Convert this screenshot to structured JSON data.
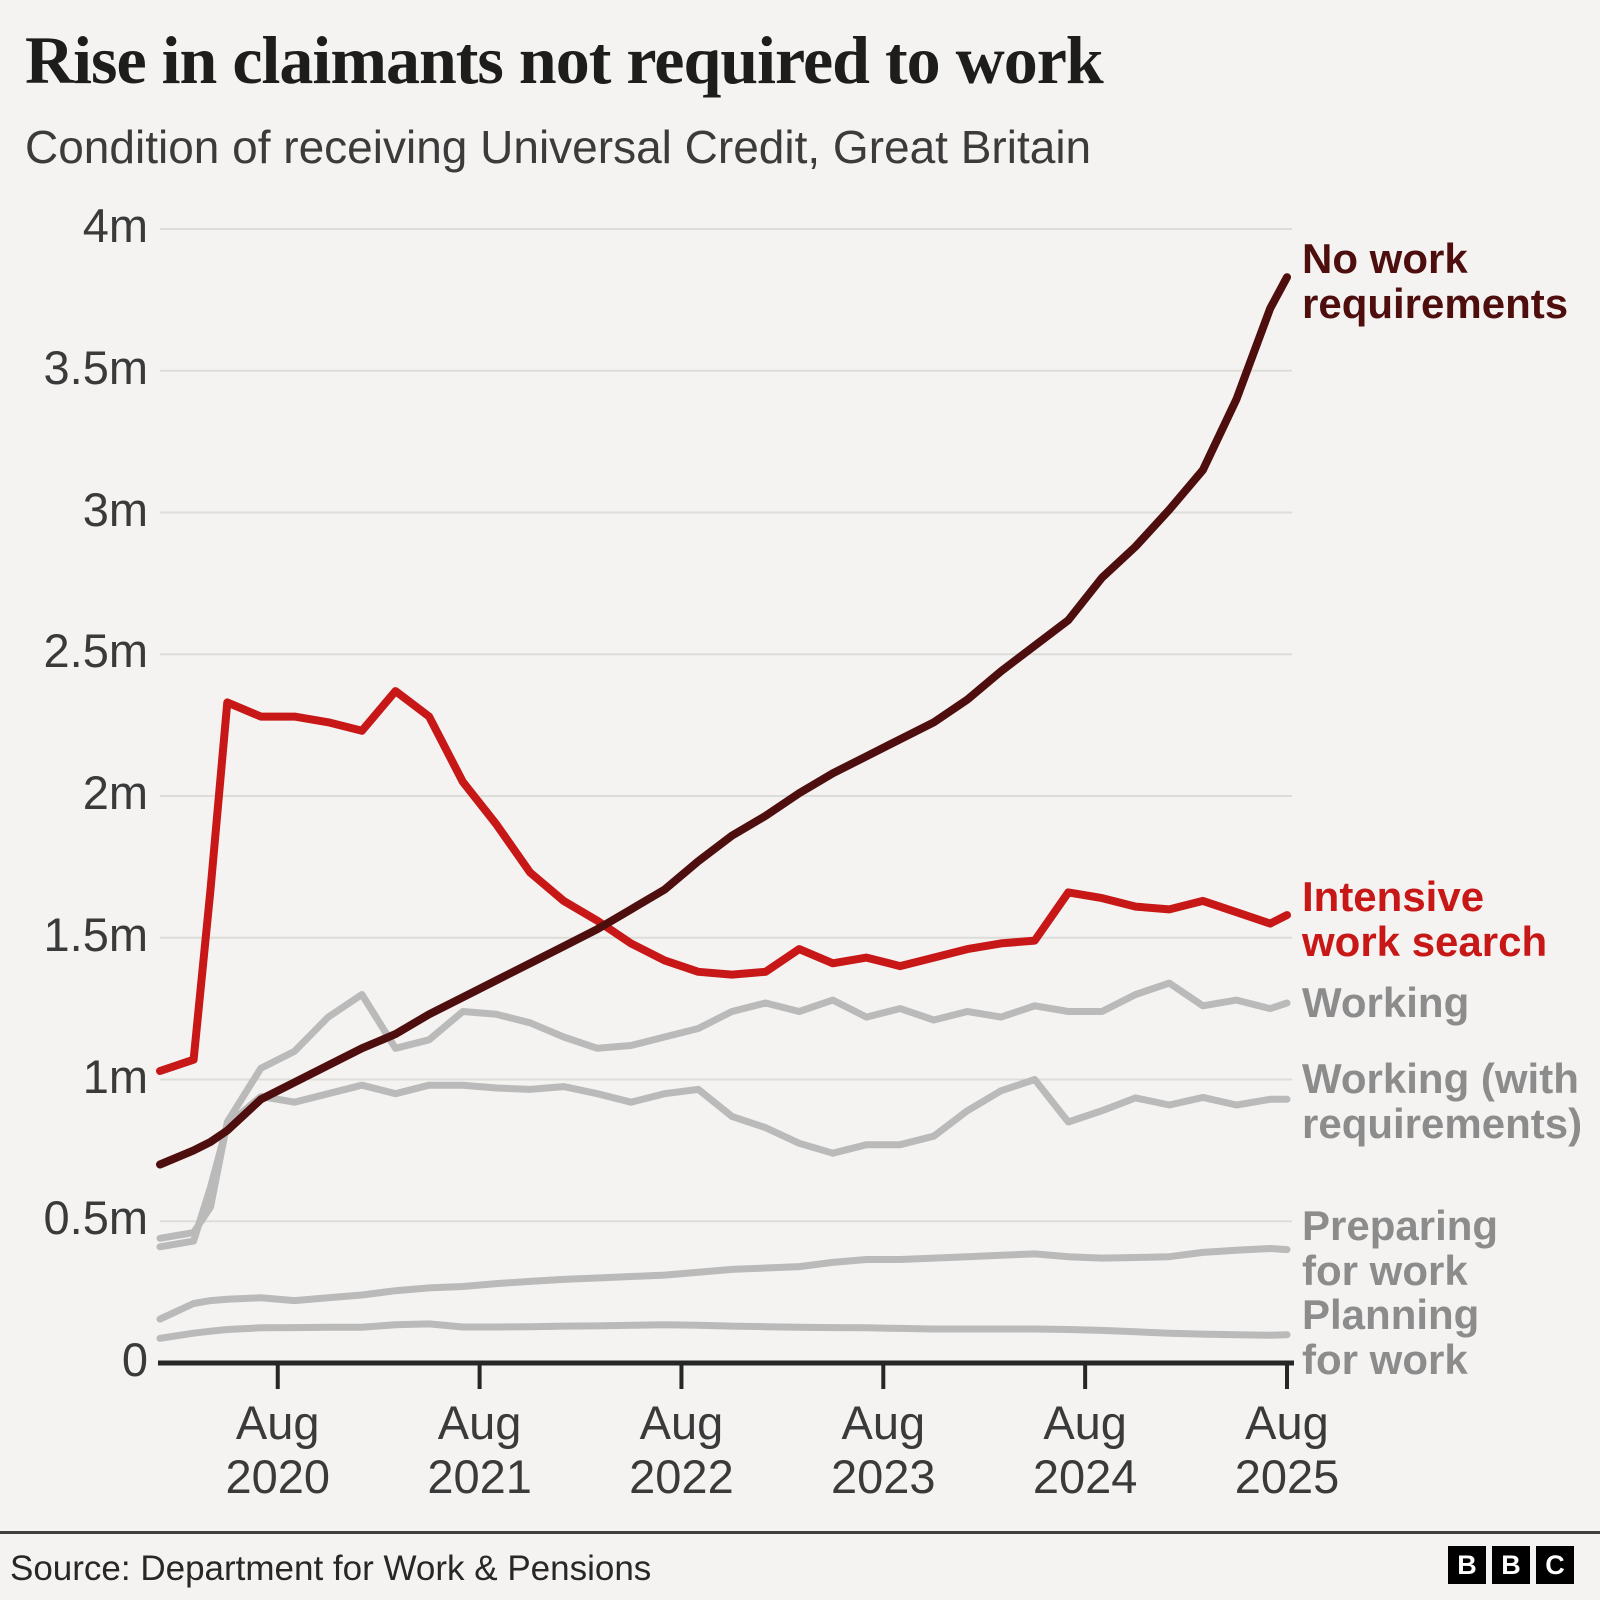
{
  "header": {
    "title": "Rise in claimants not required to work",
    "subtitle": "Condition of receiving Universal Credit, Great Britain"
  },
  "chart_data": {
    "type": "line",
    "title": "Rise in claimants not required to work",
    "subtitle": "Condition of receiving Universal Credit, Great Britain",
    "x_unit": "months since Jan 2020, monthly data to Aug 2025",
    "x": [
      0,
      2,
      3,
      4,
      6,
      8,
      10,
      12,
      14,
      16,
      18,
      20,
      22,
      24,
      26,
      28,
      30,
      32,
      34,
      36,
      38,
      40,
      42,
      44,
      46,
      48,
      50,
      52,
      54,
      56,
      58,
      60,
      62,
      64,
      66,
      67
    ],
    "x_axis": {
      "tick_months": [
        7,
        19,
        31,
        43,
        55,
        67
      ],
      "tick_labels": [
        "Aug 2020",
        "Aug 2021",
        "Aug 2022",
        "Aug 2023",
        "Aug 2024",
        "Aug 2025"
      ]
    },
    "y_axis": {
      "unit": "claimants (millions)",
      "ylim": [
        0,
        4
      ],
      "ticks": [
        {
          "value": 4,
          "label": "4m"
        },
        {
          "value": 3.5,
          "label": "3.5m"
        },
        {
          "value": 3,
          "label": "3m"
        },
        {
          "value": 2.5,
          "label": "2.5m"
        },
        {
          "value": 2,
          "label": "2m"
        },
        {
          "value": 1.5,
          "label": "1.5m"
        },
        {
          "value": 1,
          "label": "1m"
        },
        {
          "value": 0.5,
          "label": "0.5m"
        },
        {
          "value": 0,
          "label": "0"
        }
      ]
    },
    "grid": true,
    "legend_position": "labels at right end of lines",
    "series": [
      {
        "id": "no-work-requirements",
        "label": "No work\nrequirements",
        "color": "#4f0e0e",
        "label_color": "#4f0e0e",
        "width": 8,
        "values": [
          0.7,
          0.75,
          0.78,
          0.82,
          0.93,
          0.99,
          1.05,
          1.11,
          1.16,
          1.23,
          1.29,
          1.35,
          1.41,
          1.47,
          1.53,
          1.6,
          1.67,
          1.77,
          1.86,
          1.93,
          2.01,
          2.08,
          2.14,
          2.2,
          2.26,
          2.34,
          2.44,
          2.53,
          2.62,
          2.77,
          2.88,
          3.01,
          3.15,
          3.4,
          3.72,
          3.83
        ]
      },
      {
        "id": "intensive-work-search",
        "label": "Intensive\nwork search",
        "color": "#c81717",
        "label_color": "#c81717",
        "width": 8,
        "values": [
          1.03,
          1.07,
          1.67,
          2.33,
          2.28,
          2.28,
          2.26,
          2.23,
          2.37,
          2.28,
          2.05,
          1.9,
          1.73,
          1.63,
          1.56,
          1.48,
          1.42,
          1.38,
          1.37,
          1.38,
          1.46,
          1.41,
          1.43,
          1.4,
          1.43,
          1.46,
          1.48,
          1.49,
          1.66,
          1.64,
          1.61,
          1.6,
          1.63,
          1.59,
          1.55,
          1.58
        ]
      },
      {
        "id": "working",
        "label": "Working",
        "color": "#bababa",
        "label_color": "#8c8c8c",
        "width": 7,
        "values": [
          0.44,
          0.46,
          0.55,
          0.85,
          1.04,
          1.1,
          1.22,
          1.3,
          1.11,
          1.14,
          1.24,
          1.23,
          1.2,
          1.15,
          1.11,
          1.12,
          1.15,
          1.18,
          1.24,
          1.27,
          1.24,
          1.28,
          1.22,
          1.25,
          1.21,
          1.24,
          1.22,
          1.26,
          1.24,
          1.24,
          1.3,
          1.34,
          1.26,
          1.28,
          1.25,
          1.27
        ]
      },
      {
        "id": "working-with-requirements",
        "label": "Working (with\nrequirements)",
        "color": "#bababa",
        "label_color": "#8c8c8c",
        "width": 7,
        "values": [
          0.41,
          0.43,
          0.62,
          0.84,
          0.94,
          0.92,
          0.95,
          0.98,
          0.95,
          0.98,
          0.98,
          0.97,
          0.965,
          0.975,
          0.95,
          0.92,
          0.95,
          0.965,
          0.87,
          0.83,
          0.775,
          0.74,
          0.77,
          0.77,
          0.8,
          0.89,
          0.96,
          1.0,
          0.85,
          0.89,
          0.935,
          0.91,
          0.937,
          0.91,
          0.93,
          0.93
        ]
      },
      {
        "id": "preparing-for-work",
        "label": "Preparing\nfor work",
        "color": "#bababa",
        "label_color": "#8c8c8c",
        "width": 7,
        "values": [
          0.155,
          0.21,
          0.22,
          0.225,
          0.23,
          0.22,
          0.23,
          0.24,
          0.255,
          0.265,
          0.27,
          0.28,
          0.288,
          0.295,
          0.3,
          0.305,
          0.31,
          0.32,
          0.33,
          0.335,
          0.34,
          0.355,
          0.365,
          0.365,
          0.37,
          0.375,
          0.38,
          0.385,
          0.375,
          0.37,
          0.372,
          0.375,
          0.39,
          0.398,
          0.404,
          0.4
        ]
      },
      {
        "id": "planning-for-work",
        "label": "Planning\nfor work",
        "color": "#bababa",
        "label_color": "#8c8c8c",
        "width": 7,
        "values": [
          0.087,
          0.105,
          0.112,
          0.118,
          0.124,
          0.125,
          0.126,
          0.126,
          0.135,
          0.138,
          0.127,
          0.127,
          0.128,
          0.13,
          0.131,
          0.133,
          0.135,
          0.133,
          0.13,
          0.128,
          0.126,
          0.125,
          0.124,
          0.122,
          0.12,
          0.12,
          0.12,
          0.12,
          0.118,
          0.115,
          0.11,
          0.105,
          0.102,
          0.1,
          0.098,
          0.1
        ]
      }
    ],
    "draw_order": [
      5,
      4,
      3,
      2,
      1,
      0
    ]
  },
  "footer": {
    "source": "Source: Department for Work & Pensions",
    "logo": [
      "B",
      "B",
      "C"
    ]
  },
  "colors": {
    "background": "#f4f3f1",
    "gridline": "#dcdcd9",
    "axis": "#262626",
    "title": "#1d1d1b",
    "subtitle": "#3b3b3b",
    "tick_text": "#3a3a3a",
    "source_text": "#272727",
    "divider": "#3f3f3f",
    "logo_bg": "#000000",
    "logo_text": "#ffffff"
  }
}
